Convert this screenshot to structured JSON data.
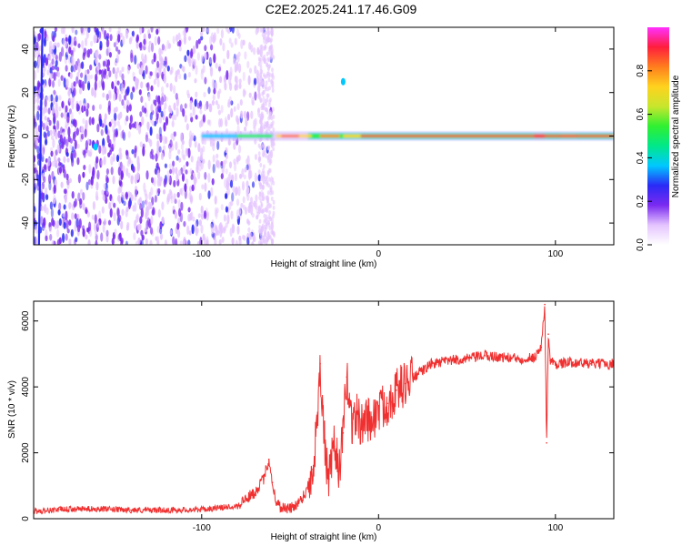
{
  "title": "C2E2.2025.241.17.46.G09",
  "chart_data": [
    {
      "type": "heatmap",
      "xlabel": "Height of straight line (km)",
      "ylabel": "Frequency (Hz)",
      "xlim": [
        -195,
        133
      ],
      "ylim": [
        -50,
        50
      ],
      "xticks": [
        -100,
        0,
        100
      ],
      "yticks": [
        -40,
        -20,
        0,
        20,
        40
      ],
      "colorbar": {
        "label": "Normalized spectral amplitude",
        "range": [
          0,
          1
        ],
        "ticks": [
          "0.0",
          "0.2",
          "0.4",
          "0.6",
          "0.8"
        ],
        "colors": [
          "#ffffff",
          "#e4c4ff",
          "#7a2af0",
          "#2a2af6",
          "#00c8ff",
          "#00e88a",
          "#30f030",
          "#c8e62e",
          "#ffd21e",
          "#ff7e1e",
          "#ff1e3c",
          "#ff30ff"
        ]
      },
      "features": {
        "noise_region_km": [
          -195,
          -60
        ],
        "carrier_line_hz": 0,
        "carrier_from_km": -100,
        "vertical_streak_km": -190,
        "stray_points": [
          {
            "x": -160,
            "y": -5
          },
          {
            "x": -20,
            "y": 25
          }
        ]
      }
    },
    {
      "type": "line",
      "color": "#f03030",
      "xlabel": "Height of straight line (km)",
      "ylabel": "SNR (10 * v/v)",
      "xlim": [
        -195,
        133
      ],
      "ylim": [
        0,
        6600
      ],
      "xticks": [
        -100,
        0,
        100
      ],
      "yticks": [
        0,
        2000,
        4000,
        6000
      ],
      "x": [
        -195,
        -180,
        -160,
        -140,
        -120,
        -100,
        -90,
        -80,
        -75,
        -70,
        -65,
        -62,
        -60,
        -58,
        -55,
        -50,
        -45,
        -40,
        -37,
        -35,
        -33,
        -30,
        -28,
        -25,
        -22,
        -20,
        -18,
        -15,
        -12,
        -10,
        -8,
        -5,
        -2,
        0,
        5,
        10,
        15,
        20,
        25,
        30,
        40,
        50,
        60,
        70,
        80,
        88,
        92,
        94,
        95,
        96,
        97,
        100,
        110,
        120,
        133
      ],
      "y": [
        220,
        280,
        300,
        260,
        260,
        280,
        330,
        400,
        600,
        800,
        1200,
        1800,
        1100,
        500,
        350,
        300,
        500,
        900,
        1500,
        2800,
        4700,
        1800,
        1200,
        2200,
        1500,
        2600,
        4300,
        2900,
        3200,
        2700,
        3100,
        3000,
        3100,
        3300,
        3500,
        3900,
        4100,
        4300,
        4500,
        4700,
        4800,
        4850,
        4950,
        4900,
        4850,
        4900,
        5200,
        6500,
        2300,
        5600,
        4800,
        4700,
        4750,
        4700,
        4700
      ]
    }
  ]
}
